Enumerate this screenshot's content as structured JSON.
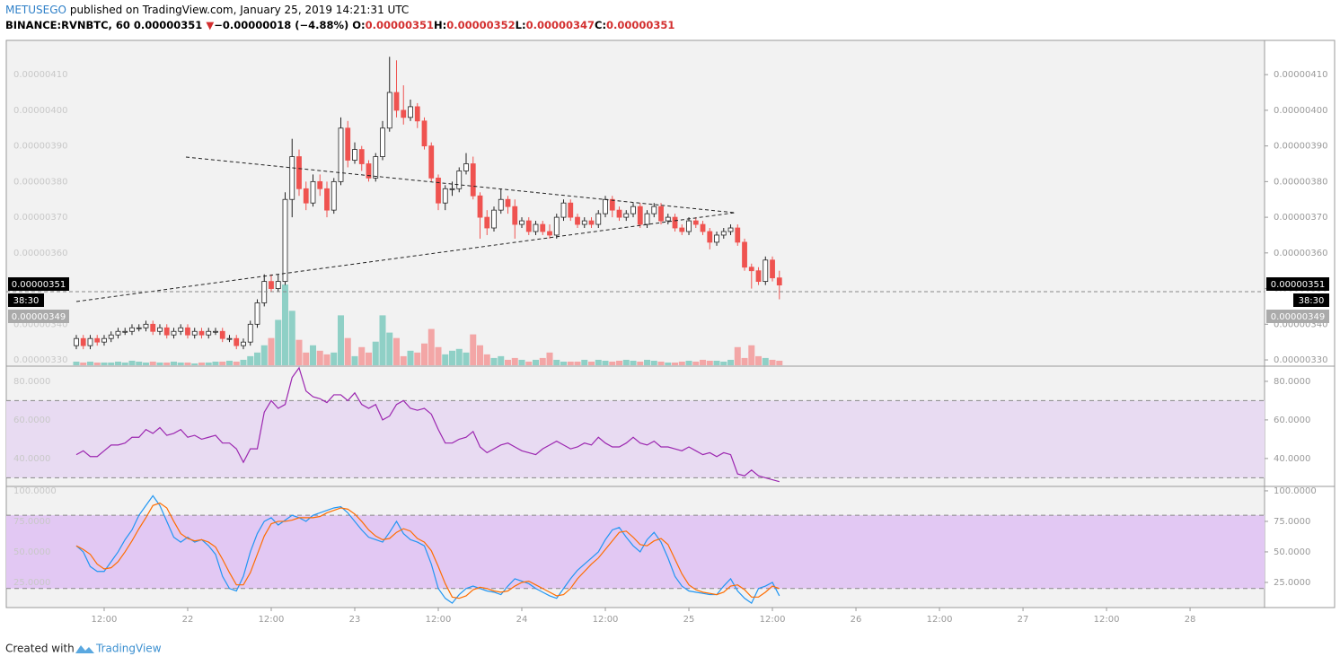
{
  "header": {
    "author": "METUSEGO",
    "published": "published on TradingView.com, January 25, 2019 14:21:31 UTC",
    "symbol": "BINANCE:RVNBTC, 60",
    "last": "0.00000351",
    "arrow": "▼",
    "change": "−0.00000018 (−4.88%)",
    "ohlc": [
      {
        "label": "O:",
        "value": "0.00000351"
      },
      {
        "label": "H:",
        "value": "0.00000352"
      },
      {
        "label": "L:",
        "value": "0.00000347"
      },
      {
        "label": "C:",
        "value": "0.00000351"
      }
    ]
  },
  "price_labels": {
    "last": "0.00000351",
    "countdown": "38:30",
    "other": "0.00000349"
  },
  "footer": {
    "created": "Created with",
    "brand": "TradingView"
  },
  "chart_data": [
    {
      "type": "candlestick",
      "up_color": "#ffffff",
      "down_color": "#ef5350",
      "volume_up_color": "#8fd0c6",
      "volume_down_color": "#f3a6a6",
      "xlim": [
        -10.06,
        170.7
      ],
      "xticks": [
        {
          "value": 4,
          "label": "12:00"
        },
        {
          "value": 16,
          "label": "22"
        },
        {
          "value": 28,
          "label": "12:00"
        },
        {
          "value": 40,
          "label": "23"
        },
        {
          "value": 52,
          "label": "12:00"
        },
        {
          "value": 64,
          "label": "24"
        },
        {
          "value": 76,
          "label": "12:00"
        },
        {
          "value": 88,
          "label": "25"
        },
        {
          "value": 100,
          "label": "12:00"
        },
        {
          "value": 112,
          "label": "26"
        },
        {
          "value": 124,
          "label": "12:00"
        },
        {
          "value": 136,
          "label": "27"
        },
        {
          "value": 148,
          "label": "12:00"
        },
        {
          "value": 160,
          "label": "28"
        }
      ],
      "ylim": [
        3.285e-06,
        4.196e-06
      ],
      "yticks": [
        {
          "value": 3.3e-06,
          "label": "0.00000330"
        },
        {
          "value": 3.4e-06,
          "label": "0.00000340"
        },
        {
          "value": 3.5e-06,
          "label": "0.00000350"
        },
        {
          "value": 3.6e-06,
          "label": "0.00000360"
        },
        {
          "value": 3.7e-06,
          "label": "0.00000370"
        },
        {
          "value": 3.8e-06,
          "label": "0.00000380"
        },
        {
          "value": 3.9e-06,
          "label": "0.00000390"
        },
        {
          "value": 4e-06,
          "label": "0.00000400"
        },
        {
          "value": 4.1e-06,
          "label": "0.00000410"
        }
      ],
      "x": [
        0,
        1,
        2,
        3,
        4,
        5,
        6,
        7,
        8,
        9,
        10,
        11,
        12,
        13,
        14,
        15,
        16,
        17,
        18,
        19,
        20,
        21,
        22,
        23,
        24,
        25,
        26,
        27,
        28,
        29,
        30,
        31,
        32,
        33,
        34,
        35,
        36,
        37,
        38,
        39,
        40,
        41,
        42,
        43,
        44,
        45,
        46,
        47,
        48,
        49,
        50,
        51,
        52,
        53,
        54,
        55,
        56,
        57,
        58,
        59,
        60,
        61,
        62,
        63,
        64,
        65,
        66,
        67,
        68,
        69,
        70,
        71,
        72,
        73,
        74,
        75,
        76,
        77,
        78,
        79,
        80,
        81,
        82,
        83,
        84,
        85,
        86,
        87,
        88,
        89,
        90,
        91,
        92,
        93,
        94,
        95,
        96,
        97,
        98,
        99,
        100,
        101
      ],
      "open": [
        3.34e-06,
        3.36e-06,
        3.34e-06,
        3.36e-06,
        3.35e-06,
        3.36e-06,
        3.37e-06,
        3.38e-06,
        3.38e-06,
        3.39e-06,
        3.39e-06,
        3.4e-06,
        3.38e-06,
        3.39e-06,
        3.37e-06,
        3.38e-06,
        3.39e-06,
        3.37e-06,
        3.38e-06,
        3.37e-06,
        3.38e-06,
        3.38e-06,
        3.36e-06,
        3.36e-06,
        3.34e-06,
        3.35e-06,
        3.4e-06,
        3.46e-06,
        3.52e-06,
        3.5e-06,
        3.52e-06,
        3.75e-06,
        3.87e-06,
        3.78e-06,
        3.74e-06,
        3.8e-06,
        3.78e-06,
        3.72e-06,
        3.8e-06,
        3.95e-06,
        3.86e-06,
        3.89e-06,
        3.85e-06,
        3.81e-06,
        3.87e-06,
        3.95e-06,
        4.05e-06,
        4e-06,
        3.98e-06,
        4.01e-06,
        3.97e-06,
        3.9e-06,
        3.81e-06,
        3.74e-06,
        3.78e-06,
        3.78e-06,
        3.83e-06,
        3.85e-06,
        3.76e-06,
        3.7e-06,
        3.67e-06,
        3.72e-06,
        3.75e-06,
        3.73e-06,
        3.68e-06,
        3.69e-06,
        3.66e-06,
        3.68e-06,
        3.66e-06,
        3.65e-06,
        3.7e-06,
        3.74e-06,
        3.7e-06,
        3.68e-06,
        3.69e-06,
        3.68e-06,
        3.71e-06,
        3.75e-06,
        3.72e-06,
        3.7e-06,
        3.71e-06,
        3.73e-06,
        3.68e-06,
        3.71e-06,
        3.73e-06,
        3.69e-06,
        3.7e-06,
        3.67e-06,
        3.66e-06,
        3.69e-06,
        3.68e-06,
        3.66e-06,
        3.63e-06,
        3.65e-06,
        3.66e-06,
        3.67e-06,
        3.63e-06,
        3.56e-06,
        3.55e-06,
        3.52e-06,
        3.58e-06,
        3.53e-06
      ],
      "high": [
        3.37e-06,
        3.37e-06,
        3.37e-06,
        3.37e-06,
        3.37e-06,
        3.38e-06,
        3.39e-06,
        3.39e-06,
        3.4e-06,
        3.4e-06,
        3.41e-06,
        3.41e-06,
        3.4e-06,
        3.4e-06,
        3.39e-06,
        3.4e-06,
        3.4e-06,
        3.39e-06,
        3.39e-06,
        3.39e-06,
        3.39e-06,
        3.39e-06,
        3.37e-06,
        3.37e-06,
        3.36e-06,
        3.41e-06,
        3.47e-06,
        3.54e-06,
        3.54e-06,
        3.54e-06,
        3.77e-06,
        3.92e-06,
        3.89e-06,
        3.8e-06,
        3.82e-06,
        3.82e-06,
        3.8e-06,
        3.81e-06,
        3.98e-06,
        3.97e-06,
        3.91e-06,
        3.9e-06,
        3.86e-06,
        3.88e-06,
        3.97e-06,
        4.15e-06,
        4.14e-06,
        4.07e-06,
        4.03e-06,
        4.02e-06,
        3.98e-06,
        3.91e-06,
        3.82e-06,
        3.79e-06,
        3.8e-06,
        3.84e-06,
        3.88e-06,
        3.87e-06,
        3.77e-06,
        3.72e-06,
        3.73e-06,
        3.78e-06,
        3.76e-06,
        3.75e-06,
        3.7e-06,
        3.7e-06,
        3.69e-06,
        3.69e-06,
        3.68e-06,
        3.71e-06,
        3.75e-06,
        3.75e-06,
        3.71e-06,
        3.7e-06,
        3.7e-06,
        3.72e-06,
        3.76e-06,
        3.76e-06,
        3.73e-06,
        3.72e-06,
        3.74e-06,
        3.74e-06,
        3.72e-06,
        3.74e-06,
        3.74e-06,
        3.71e-06,
        3.71e-06,
        3.68e-06,
        3.7e-06,
        3.7e-06,
        3.69e-06,
        3.67e-06,
        3.66e-06,
        3.67e-06,
        3.68e-06,
        3.68e-06,
        3.64e-06,
        3.57e-06,
        3.56e-06,
        3.59e-06,
        3.59e-06,
        3.55e-06
      ],
      "low": [
        3.33e-06,
        3.33e-06,
        3.33e-06,
        3.34e-06,
        3.34e-06,
        3.35e-06,
        3.36e-06,
        3.37e-06,
        3.37e-06,
        3.38e-06,
        3.38e-06,
        3.37e-06,
        3.37e-06,
        3.36e-06,
        3.36e-06,
        3.37e-06,
        3.36e-06,
        3.36e-06,
        3.36e-06,
        3.36e-06,
        3.37e-06,
        3.35e-06,
        3.35e-06,
        3.33e-06,
        3.33e-06,
        3.34e-06,
        3.39e-06,
        3.45e-06,
        3.49e-06,
        3.49e-06,
        3.51e-06,
        3.7e-06,
        3.76e-06,
        3.72e-06,
        3.73e-06,
        3.76e-06,
        3.7e-06,
        3.71e-06,
        3.79e-06,
        3.84e-06,
        3.85e-06,
        3.83e-06,
        3.8e-06,
        3.8e-06,
        3.86e-06,
        3.94e-06,
        3.98e-06,
        3.96e-06,
        3.97e-06,
        3.95e-06,
        3.89e-06,
        3.8e-06,
        3.72e-06,
        3.72e-06,
        3.76e-06,
        3.77e-06,
        3.82e-06,
        3.75e-06,
        3.64e-06,
        3.65e-06,
        3.66e-06,
        3.71e-06,
        3.71e-06,
        3.64e-06,
        3.67e-06,
        3.65e-06,
        3.65e-06,
        3.65e-06,
        3.64e-06,
        3.64e-06,
        3.69e-06,
        3.69e-06,
        3.67e-06,
        3.67e-06,
        3.67e-06,
        3.67e-06,
        3.7e-06,
        3.7e-06,
        3.69e-06,
        3.69e-06,
        3.7e-06,
        3.67e-06,
        3.67e-06,
        3.7e-06,
        3.68e-06,
        3.68e-06,
        3.66e-06,
        3.65e-06,
        3.65e-06,
        3.67e-06,
        3.65e-06,
        3.61e-06,
        3.62e-06,
        3.64e-06,
        3.65e-06,
        3.62e-06,
        3.55e-06,
        3.5e-06,
        3.51e-06,
        3.51e-06,
        3.52e-06,
        3.47e-06
      ],
      "close": [
        3.36e-06,
        3.34e-06,
        3.36e-06,
        3.35e-06,
        3.36e-06,
        3.37e-06,
        3.38e-06,
        3.38e-06,
        3.39e-06,
        3.39e-06,
        3.4e-06,
        3.38e-06,
        3.39e-06,
        3.37e-06,
        3.38e-06,
        3.39e-06,
        3.37e-06,
        3.38e-06,
        3.37e-06,
        3.38e-06,
        3.38e-06,
        3.36e-06,
        3.36e-06,
        3.34e-06,
        3.35e-06,
        3.4e-06,
        3.46e-06,
        3.52e-06,
        3.5e-06,
        3.52e-06,
        3.75e-06,
        3.87e-06,
        3.78e-06,
        3.74e-06,
        3.8e-06,
        3.78e-06,
        3.72e-06,
        3.8e-06,
        3.95e-06,
        3.86e-06,
        3.89e-06,
        3.85e-06,
        3.81e-06,
        3.87e-06,
        3.95e-06,
        4.05e-06,
        4e-06,
        3.98e-06,
        4.01e-06,
        3.97e-06,
        3.9e-06,
        3.81e-06,
        3.74e-06,
        3.78e-06,
        3.78e-06,
        3.83e-06,
        3.85e-06,
        3.76e-06,
        3.7e-06,
        3.67e-06,
        3.72e-06,
        3.75e-06,
        3.73e-06,
        3.68e-06,
        3.69e-06,
        3.66e-06,
        3.68e-06,
        3.66e-06,
        3.65e-06,
        3.7e-06,
        3.74e-06,
        3.7e-06,
        3.68e-06,
        3.69e-06,
        3.68e-06,
        3.71e-06,
        3.75e-06,
        3.72e-06,
        3.7e-06,
        3.71e-06,
        3.73e-06,
        3.68e-06,
        3.71e-06,
        3.73e-06,
        3.69e-06,
        3.7e-06,
        3.67e-06,
        3.66e-06,
        3.69e-06,
        3.68e-06,
        3.66e-06,
        3.63e-06,
        3.65e-06,
        3.66e-06,
        3.67e-06,
        3.63e-06,
        3.56e-06,
        3.55e-06,
        3.52e-06,
        3.58e-06,
        3.53e-06,
        3.51e-06
      ],
      "volume": [
        4,
        3,
        4,
        3,
        3,
        3,
        4,
        3,
        5,
        4,
        3,
        4,
        3,
        3,
        4,
        3,
        3,
        2,
        3,
        3,
        4,
        4,
        5,
        4,
        6,
        10,
        14,
        22,
        30,
        50,
        89,
        60,
        28,
        14,
        22,
        16,
        12,
        14,
        55,
        30,
        10,
        20,
        14,
        26,
        55,
        36,
        30,
        10,
        16,
        14,
        24,
        40,
        20,
        12,
        16,
        18,
        14,
        34,
        22,
        12,
        8,
        10,
        6,
        8,
        6,
        4,
        6,
        8,
        14,
        6,
        4,
        4,
        4,
        6,
        4,
        6,
        5,
        4,
        5,
        6,
        5,
        4,
        6,
        5,
        4,
        3,
        3,
        4,
        5,
        4,
        6,
        5,
        5,
        4,
        6,
        20,
        8,
        22,
        10,
        8,
        6,
        5
      ]
    },
    {
      "type": "line",
      "ylim": [
        26,
        87.4
      ],
      "band": [
        30,
        70
      ],
      "band_color": "#e8dbf2",
      "yticks": [
        {
          "value": 40,
          "label": "40.0000"
        },
        {
          "value": 60,
          "label": "60.0000"
        },
        {
          "value": 80,
          "label": "80.0000"
        }
      ],
      "series": [
        {
          "color": "#9c27b0",
          "values": [
            42,
            44,
            41,
            41,
            44,
            47,
            47,
            48,
            51,
            51,
            55,
            53,
            56,
            52,
            53,
            55,
            51,
            52,
            50,
            51,
            52,
            48,
            48,
            45,
            38,
            45,
            45,
            64,
            70,
            66,
            68,
            82,
            87,
            75,
            72,
            71,
            69,
            73,
            73,
            70,
            74,
            68,
            66,
            68,
            60,
            62,
            68,
            70,
            66,
            65,
            66,
            63,
            55,
            48,
            48,
            50,
            51,
            54,
            46,
            43,
            45,
            47,
            48,
            46,
            44,
            43,
            42,
            45,
            47,
            49,
            47,
            45,
            46,
            48,
            47,
            51,
            48,
            46,
            46,
            48,
            51,
            48,
            47,
            49,
            46,
            46,
            45,
            44,
            46,
            44,
            42,
            43,
            41,
            43,
            42,
            32,
            31,
            34,
            31,
            30,
            29,
            28
          ]
        }
      ]
    },
    {
      "type": "line",
      "ylim": [
        4.4,
        102.9
      ],
      "band": [
        20,
        80
      ],
      "band_color": "#e2c8f3",
      "yticks": [
        {
          "value": 25,
          "label": "25.0000"
        },
        {
          "value": 50,
          "label": "50.0000"
        },
        {
          "value": 75,
          "label": "75.0000"
        },
        {
          "value": 100,
          "label": "100.0000"
        }
      ],
      "series": [
        {
          "color": "#2196f3",
          "values": [
            55,
            50,
            38,
            34,
            34,
            42,
            50,
            60,
            68,
            80,
            88,
            96,
            88,
            75,
            62,
            58,
            62,
            58,
            60,
            55,
            48,
            30,
            20,
            18,
            30,
            50,
            65,
            75,
            78,
            72,
            76,
            80,
            78,
            75,
            80,
            82,
            84,
            86,
            87,
            82,
            75,
            68,
            62,
            60,
            58,
            66,
            75,
            65,
            60,
            58,
            55,
            40,
            20,
            12,
            8,
            15,
            20,
            22,
            20,
            18,
            17,
            15,
            22,
            28,
            26,
            24,
            20,
            17,
            14,
            12,
            20,
            28,
            35,
            40,
            45,
            50,
            60,
            68,
            70,
            62,
            55,
            50,
            60,
            66,
            58,
            45,
            30,
            22,
            18,
            17,
            16,
            15,
            15,
            22,
            28,
            18,
            12,
            8,
            20,
            22,
            25,
            14
          ]
        },
        {
          "color": "#ff6d00",
          "values": [
            55,
            52,
            48,
            40,
            36,
            37,
            42,
            50,
            59,
            69,
            78,
            88,
            90,
            86,
            75,
            65,
            61,
            59,
            60,
            58,
            54,
            44,
            33,
            23,
            23,
            33,
            48,
            63,
            73,
            75,
            75,
            76,
            78,
            78,
            78,
            79,
            82,
            84,
            86,
            85,
            81,
            75,
            68,
            63,
            60,
            61,
            66,
            69,
            67,
            61,
            58,
            51,
            38,
            24,
            13,
            12,
            14,
            19,
            21,
            20,
            18,
            17,
            18,
            22,
            25,
            26,
            23,
            20,
            17,
            14,
            15,
            20,
            28,
            34,
            40,
            45,
            52,
            59,
            66,
            67,
            62,
            56,
            55,
            59,
            61,
            56,
            44,
            32,
            23,
            19,
            17,
            16,
            15,
            17,
            22,
            23,
            19,
            13,
            13,
            17,
            22,
            20
          ]
        }
      ]
    }
  ]
}
